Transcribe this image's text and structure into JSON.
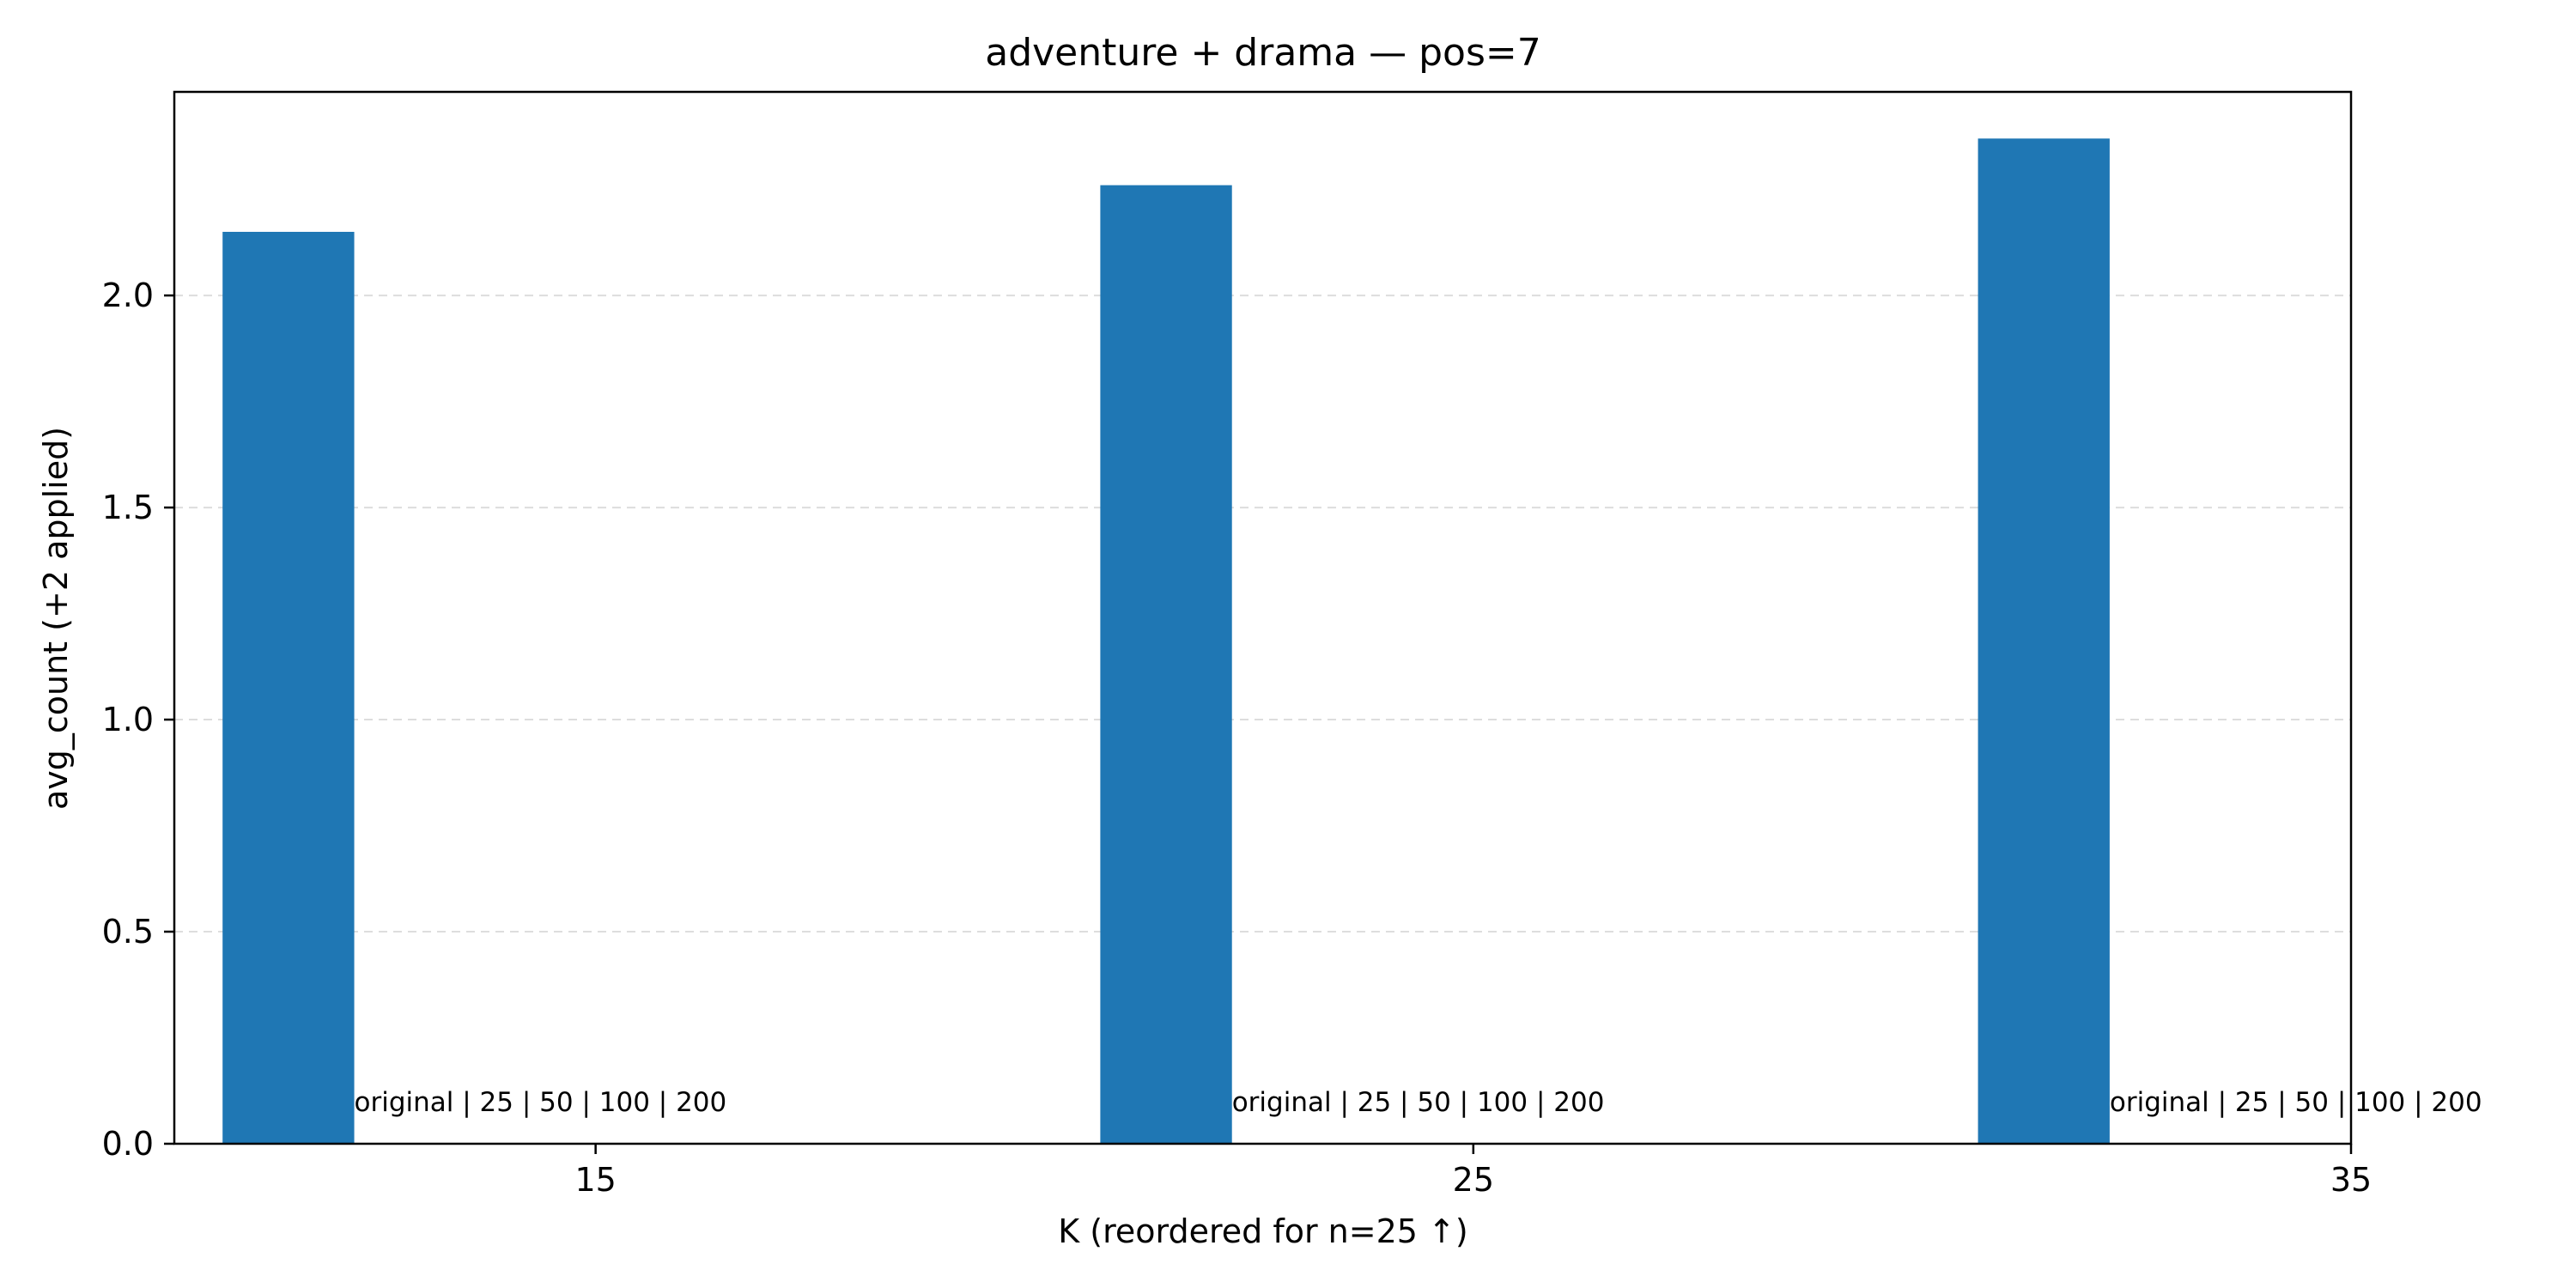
{
  "chart_data": {
    "type": "bar",
    "title": "adventure + drama — pos=7",
    "xlabel": "K (reordered for n=25 ↑)",
    "ylabel": "avg_count (+2 applied)",
    "x_ticks": [
      "15",
      "25",
      "35"
    ],
    "x_range": [
      10.2,
      35
    ],
    "ylim": [
      0,
      2.48
    ],
    "y_ticks": [
      "0.0",
      "0.5",
      "1.0",
      "1.5",
      "2.0"
    ],
    "bar_color": "#1f77b4",
    "grid": "y-dashed",
    "bars": [
      {
        "x": 11.5,
        "value": 2.15,
        "annotation": "original | 25 | 50 | 100 | 200"
      },
      {
        "x": 21.5,
        "value": 2.26,
        "annotation": "original | 25 | 50 | 100 | 200"
      },
      {
        "x": 31.5,
        "value": 2.37,
        "annotation": "original | 25 | 50 | 100 | 200"
      }
    ],
    "bar_width": 1.5
  }
}
